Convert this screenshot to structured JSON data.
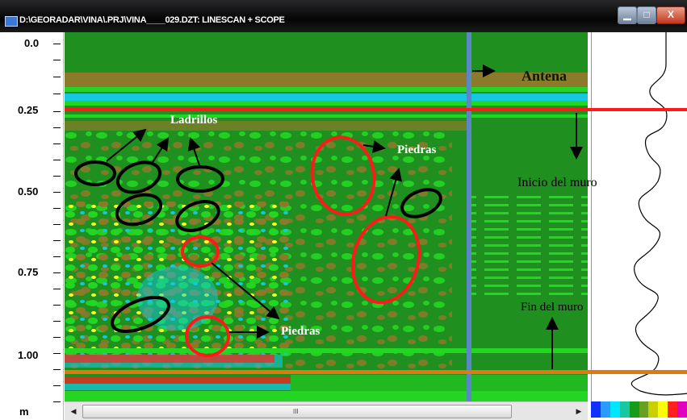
{
  "window": {
    "title": "D:\\GEORADAR\\VINA\\.PRJ\\VINA____029.DZT: LINESCAN + SCOPE",
    "controls": {
      "minimize": "▁",
      "maximize": "□",
      "close": "X"
    }
  },
  "depth_axis": {
    "labels": [
      {
        "text": "0.0",
        "value": 0.0
      },
      {
        "text": "0.25",
        "value": 0.25
      },
      {
        "text": "0.50",
        "value": 0.5
      },
      {
        "text": "0.75",
        "value": 0.75
      },
      {
        "text": "1.00",
        "value": 1.0
      }
    ],
    "unit": "m"
  },
  "annotations": {
    "antena": "Antena",
    "ladrillos": "Ladrillos",
    "piedras_top": "Piedras",
    "piedras_bottom": "Piedras",
    "inicio_muro": "Inicio del muro",
    "fin_muro": "Fin del muro"
  },
  "scrollbar": {
    "left_arrow": "◀",
    "right_arrow": "▶",
    "grip": "III"
  },
  "colors": {
    "radar_green": "#1f8f1f",
    "bright_green": "#22d622",
    "olive": "#8a7a2a",
    "cyan": "#14c8e0",
    "red_line": "#ff1a1a",
    "orange_line": "#e07a10",
    "blue_line": "#5b86c8",
    "black_ellipse": "#000000",
    "red_ellipse": "#ff1a1a"
  },
  "color_scale": [
    "#1030ff",
    "#2a9cff",
    "#00e6ff",
    "#16c8a0",
    "#1a9a1a",
    "#6aa020",
    "#c8d000",
    "#ffff00",
    "#ff2020",
    "#e000c0"
  ]
}
